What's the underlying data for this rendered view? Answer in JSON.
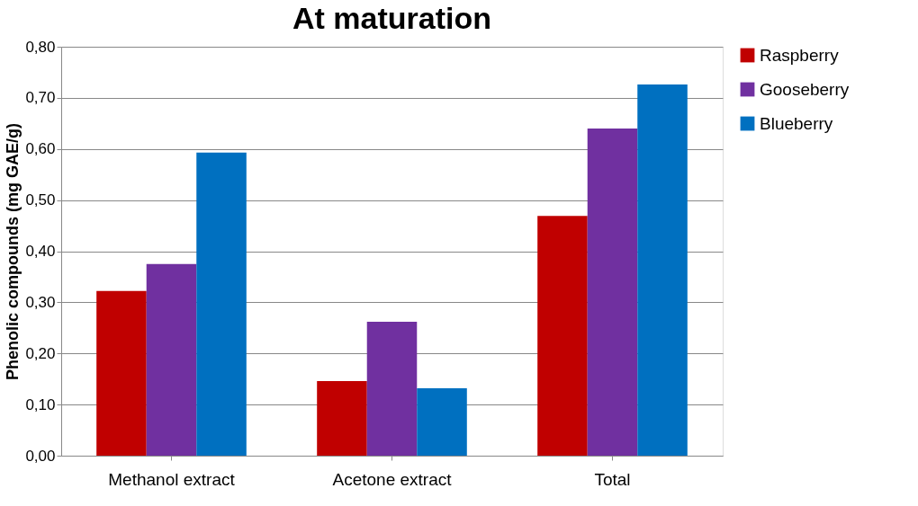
{
  "chart_data": {
    "type": "bar",
    "title": "At maturation",
    "ylabel": "Phenolic compounds (mg GAE/g)",
    "categories": [
      "Methanol extract",
      "Acetone extract",
      "Total"
    ],
    "series": [
      {
        "name": "Raspberry",
        "color": "#c00000",
        "values": [
          0.322,
          0.146,
          0.469
        ]
      },
      {
        "name": "Gooseberry",
        "color": "#7030a0",
        "values": [
          0.375,
          0.262,
          0.64
        ]
      },
      {
        "name": "Blueberry",
        "color": "#0070c0",
        "values": [
          0.593,
          0.132,
          0.726
        ]
      }
    ],
    "ylim": [
      0,
      0.8
    ],
    "yticks": [
      {
        "value": 0,
        "label": "0,00"
      },
      {
        "value": 0.1,
        "label": "0,10"
      },
      {
        "value": 0.2,
        "label": "0,20"
      },
      {
        "value": 0.3,
        "label": "0,30"
      },
      {
        "value": 0.4,
        "label": "0,40"
      },
      {
        "value": 0.5,
        "label": "0,50"
      },
      {
        "value": 0.6,
        "label": "0,60"
      },
      {
        "value": 0.7,
        "label": "0,70"
      },
      {
        "value": 0.8,
        "label": "0,80"
      }
    ],
    "grid": "y",
    "legend": "right"
  }
}
